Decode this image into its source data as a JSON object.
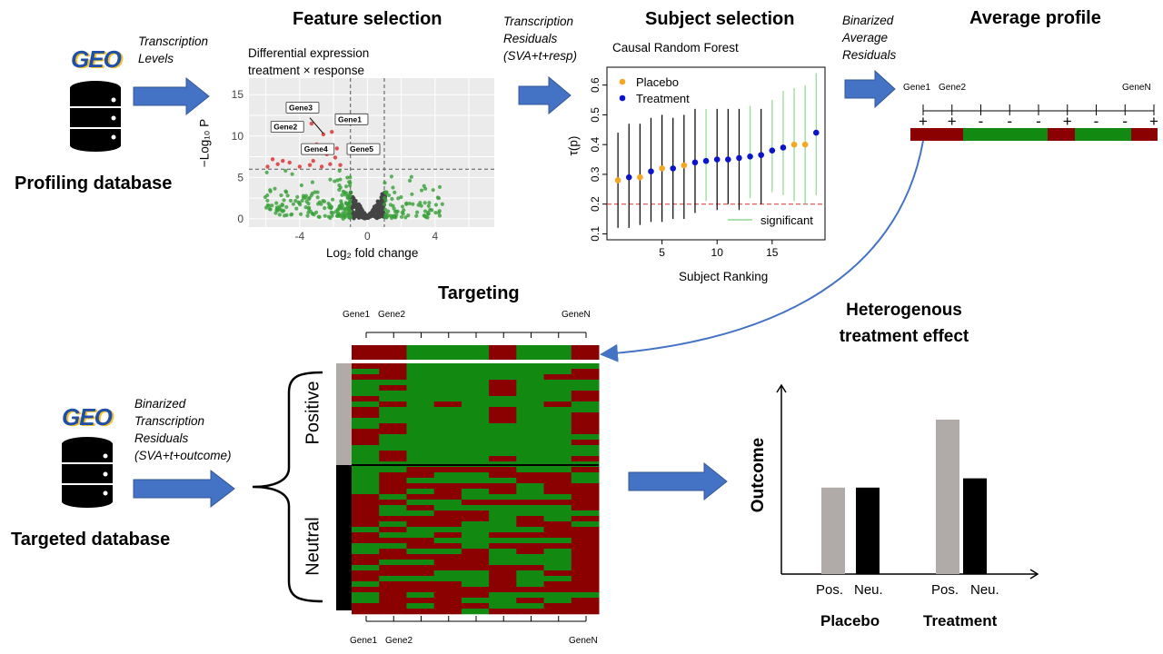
{
  "sections": {
    "feature_selection": "Feature selection",
    "subject_selection": "Subject selection",
    "average_profile": "Average profile",
    "targeting": "Targeting",
    "hte_line1": "Heterogenous",
    "hte_line2": "treatment effect"
  },
  "databases": {
    "geo_logo": "GEO",
    "profiling": "Profiling database",
    "targeted": "Targeted database"
  },
  "arrow_labels": {
    "transcription_levels": [
      "Transcription",
      "Levels"
    ],
    "transcription_residuals": [
      "Transcription",
      "Residuals",
      "(SVA+t+resp)"
    ],
    "binarized_average": [
      "Binarized",
      "Average",
      "Residuals"
    ],
    "binarized_transcription": [
      "Binarized",
      "Transcription",
      "Residuals",
      "(SVA+t+outcome)"
    ]
  },
  "volcano": {
    "subtitle1": "Differential expression",
    "subtitle2": "treatment × response",
    "xlabel": "Log₂ fold change",
    "ylabel": "−Log₁₀ P",
    "xticks": [
      "-4",
      "0",
      "4"
    ],
    "yticks": [
      "0",
      "5",
      "10",
      "15"
    ],
    "gene_labels": [
      "Gene3",
      "Gene1",
      "Gene2",
      "Gene4",
      "Gene5"
    ]
  },
  "forest": {
    "title": "Causal Random Forest",
    "xlabel": "Subject Ranking",
    "ylabel": "τ(p)",
    "legend_placebo": "Placebo",
    "legend_treatment": "Treatment",
    "legend_significant": "significant",
    "xticks": [
      "5",
      "10",
      "15"
    ],
    "yticks": [
      "0.1",
      "0.2",
      "0.3",
      "0.4",
      "0.5",
      "0.6"
    ]
  },
  "profile": {
    "gene_first": "Gene1",
    "gene_second": "Gene2",
    "gene_last": "GeneN",
    "signs": [
      "+",
      "+",
      "-",
      "-",
      "-",
      "+",
      "-",
      "-",
      "+"
    ]
  },
  "heatmap": {
    "gene_first": "Gene1",
    "gene_second": "Gene2",
    "gene_last": "GeneN",
    "positive": "Positive",
    "neutral": "Neutral"
  },
  "chart_data": {
    "type": "bar",
    "categories": [
      "Placebo",
      "Treatment"
    ],
    "bar_labels": [
      "Pos.",
      "Neu.",
      "Pos.",
      "Neu."
    ],
    "series": [
      {
        "name": "Pos.",
        "values": [
          0.56,
          1.0
        ]
      },
      {
        "name": "Neu.",
        "values": [
          0.56,
          0.62
        ]
      }
    ],
    "ylabel": "Outcome",
    "colors": {
      "pos": "#b0aaa9",
      "neu": "#000000"
    }
  },
  "colors": {
    "arrow": "#4472c4",
    "red": "#8b0000",
    "green": "#128a12",
    "orange": "#f5a623",
    "blue": "#0a14c8",
    "gray_point": "#555555"
  }
}
